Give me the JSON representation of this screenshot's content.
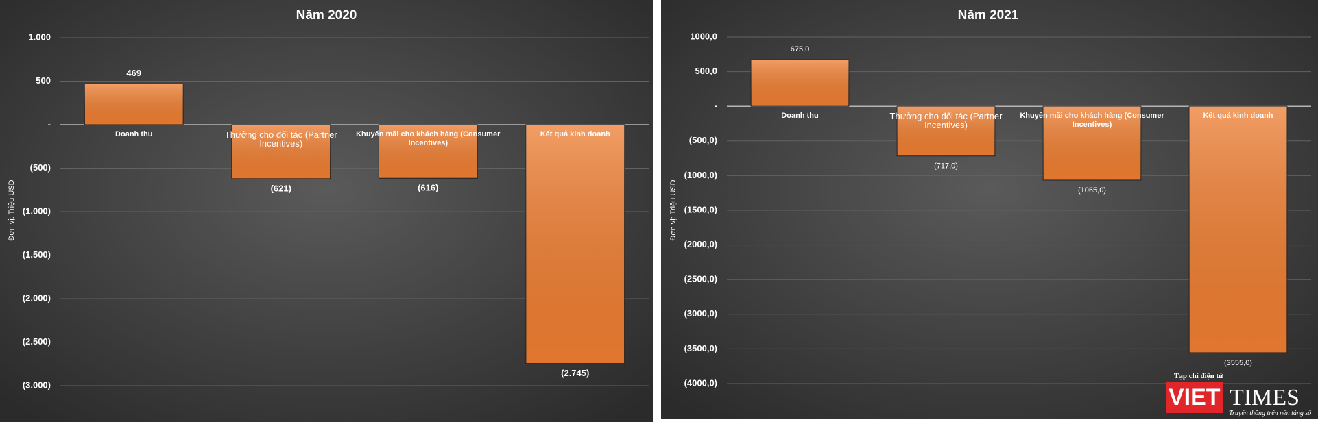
{
  "chart_data": [
    {
      "type": "bar",
      "title": "Năm 2020",
      "ylabel": "Đơn vị: Triệu USD",
      "categories": [
        "Doanh thu",
        "Thưởng cho đối tác (Partner Incentives)",
        "Khuyến mãi cho khách hàng (Consumer Incentives)",
        "Kết quả kinh doanh"
      ],
      "values": [
        469,
        -621,
        -616,
        -2745
      ],
      "value_labels": [
        "469",
        "(621)",
        "(616)",
        "(2.745)"
      ],
      "color": "#ed7d31",
      "ylim": [
        -3000,
        1000
      ],
      "yticks": [
        {
          "value": 1000,
          "label": "1.000"
        },
        500,
        {
          "value": 0,
          "label": "-"
        },
        {
          "value": -500,
          "label": "(500)"
        },
        {
          "value": -1000,
          "label": "(1.000)"
        },
        {
          "value": -1500,
          "label": "(1.500)"
        },
        {
          "value": -2000,
          "label": "(2.000)"
        },
        {
          "value": -2500,
          "label": "(2.500)"
        },
        {
          "value": -3000,
          "label": "(3.000)"
        }
      ],
      "grid": true
    },
    {
      "type": "bar",
      "title": "Năm 2021",
      "ylabel": "Đơn vị: Triệu USD",
      "categories": [
        "Doanh thu",
        "Thưởng cho đối tác (Partner Incentives)",
        "Khuyến mãi cho khách hàng (Consumer Incentives)",
        "Kết quả kinh doanh"
      ],
      "values": [
        675,
        -717,
        -1065,
        -3555
      ],
      "value_labels": [
        "675,0",
        "(717,0)",
        "(1065,0)",
        "(3555,0)"
      ],
      "color": "#ed7d31",
      "ylim": [
        -4000,
        1000
      ],
      "yticks": [
        {
          "value": 1000,
          "label": "1000,0"
        },
        {
          "value": 500,
          "label": "500,0"
        },
        {
          "value": 0,
          "label": "-"
        },
        {
          "value": -500,
          "label": "(500,0)"
        },
        {
          "value": -1000,
          "label": "(1000,0)"
        },
        {
          "value": -1500,
          "label": "(1500,0)"
        },
        {
          "value": -2000,
          "label": "(2000,0)"
        },
        {
          "value": -2500,
          "label": "(2500,0)"
        },
        {
          "value": -3000,
          "label": "(3000,0)"
        },
        {
          "value": -3500,
          "label": "(3500,0)"
        },
        {
          "value": -4000,
          "label": "(4000,0)"
        }
      ],
      "grid": true
    }
  ],
  "watermark": {
    "note": "Tạp chí điện tử",
    "brand_left": "VIET",
    "brand_right": "TIMES",
    "tagline": "Truyền thông trên nền tảng số"
  }
}
